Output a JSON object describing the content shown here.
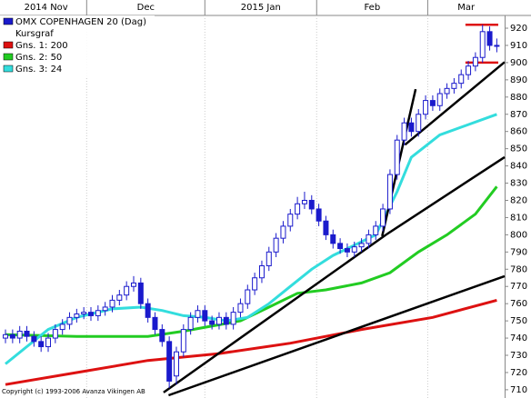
{
  "chart_data": {
    "type": "candlestick",
    "subtitle": "Kursgraf",
    "footer": "Copyright (c) 1993-2006 Avanza Vikingen AB",
    "candles": {
      "name": "OMX COPENHAGEN 20 (Dag)",
      "color": "#1a1acc",
      "x": [
        0,
        1,
        2,
        3,
        4,
        5,
        6,
        7,
        8,
        9,
        10,
        11,
        12,
        13,
        14,
        15,
        16,
        17,
        18,
        19,
        20,
        21,
        22,
        23,
        24,
        25,
        26,
        27,
        28,
        29,
        30,
        31,
        32,
        33,
        34,
        35,
        36,
        37,
        38,
        39,
        40,
        41,
        42,
        43,
        44,
        45,
        46,
        47,
        48,
        49,
        50,
        51,
        52,
        53,
        54,
        55,
        56,
        57,
        58,
        59,
        60,
        61,
        62,
        63,
        64,
        65,
        66,
        67,
        68,
        69
      ],
      "open": [
        740,
        742,
        740,
        744,
        741,
        738,
        735,
        740,
        745,
        748,
        752,
        754,
        755,
        753,
        756,
        758,
        762,
        765,
        770,
        772,
        760,
        752,
        745,
        738,
        718,
        732,
        745,
        752,
        756,
        750,
        748,
        752,
        748,
        755,
        760,
        768,
        775,
        782,
        790,
        798,
        805,
        812,
        818,
        820,
        815,
        808,
        800,
        795,
        792,
        790,
        793,
        795,
        800,
        805,
        815,
        835,
        855,
        865,
        860,
        870,
        878,
        875,
        882,
        885,
        888,
        893,
        898,
        903,
        918,
        910
      ],
      "high": [
        745,
        745,
        747,
        747,
        744,
        741,
        743,
        748,
        751,
        755,
        757,
        758,
        758,
        759,
        761,
        765,
        768,
        773,
        776,
        775,
        763,
        755,
        748,
        741,
        735,
        748,
        755,
        759,
        759,
        753,
        755,
        755,
        758,
        763,
        771,
        778,
        785,
        793,
        801,
        808,
        815,
        822,
        825,
        823,
        818,
        811,
        803,
        798,
        795,
        796,
        798,
        803,
        808,
        818,
        838,
        858,
        868,
        868,
        873,
        881,
        881,
        885,
        888,
        891,
        896,
        901,
        906,
        922,
        921,
        914
      ],
      "low": [
        737,
        737,
        737,
        738,
        735,
        732,
        732,
        737,
        742,
        745,
        749,
        751,
        750,
        750,
        753,
        755,
        759,
        762,
        767,
        757,
        749,
        742,
        735,
        711,
        713,
        729,
        742,
        749,
        747,
        745,
        745,
        745,
        745,
        752,
        757,
        765,
        772,
        779,
        787,
        795,
        802,
        809,
        815,
        812,
        805,
        797,
        792,
        789,
        787,
        787,
        790,
        792,
        797,
        802,
        812,
        832,
        852,
        857,
        857,
        867,
        872,
        872,
        879,
        882,
        885,
        890,
        895,
        900,
        907,
        906
      ],
      "close": [
        742,
        740,
        744,
        741,
        738,
        735,
        740,
        745,
        748,
        752,
        754,
        755,
        753,
        756,
        758,
        762,
        765,
        770,
        772,
        760,
        752,
        745,
        738,
        715,
        732,
        745,
        752,
        756,
        750,
        748,
        752,
        748,
        755,
        760,
        768,
        775,
        782,
        790,
        798,
        805,
        812,
        818,
        820,
        815,
        808,
        800,
        795,
        792,
        790,
        793,
        795,
        800,
        805,
        815,
        835,
        855,
        865,
        860,
        870,
        878,
        875,
        882,
        885,
        888,
        893,
        898,
        903,
        918,
        910,
        910
      ]
    },
    "series": [
      {
        "name": "Gns. 1: 200",
        "color": "#dd1111",
        "x": [
          0,
          10,
          20,
          30,
          40,
          50,
          60,
          69
        ],
        "values": [
          713,
          720,
          727,
          731,
          737,
          745,
          752,
          762
        ]
      },
      {
        "name": "Gns. 2: 50",
        "color": "#22cc22",
        "x": [
          0,
          10,
          20,
          25,
          33,
          37,
          41,
          45,
          50,
          54,
          58,
          62,
          66,
          69
        ],
        "values": [
          742,
          741,
          741,
          744,
          750,
          758,
          766,
          768,
          772,
          778,
          790,
          800,
          812,
          828
        ]
      },
      {
        "name": "Gns. 3: 24",
        "color": "#33dddd",
        "x": [
          0,
          3,
          6,
          10,
          15,
          19,
          22,
          25,
          28,
          31,
          34,
          37,
          40,
          43,
          46,
          49,
          52,
          55,
          57,
          61,
          65,
          69
        ],
        "values": [
          725,
          735,
          745,
          752,
          757,
          758,
          756,
          753,
          752,
          750,
          752,
          760,
          770,
          780,
          788,
          794,
          800,
          825,
          845,
          858,
          864,
          870
        ]
      }
    ],
    "trendlines": [
      {
        "color": "#000000",
        "x": [
          22.2,
          53.5
        ],
        "values": [
          708.4,
          800.2
        ]
      },
      {
        "color": "#000000",
        "x": [
          53.5,
          70.1
        ],
        "values": [
          800.2,
          845.1
        ]
      },
      {
        "color": "#000000",
        "x": [
          52.9,
          57.6
        ],
        "values": [
          799.2,
          884.6
        ]
      },
      {
        "color": "#000000",
        "x": [
          56.1,
          70.1
        ],
        "values": [
          852.3,
          900.3
        ]
      },
      {
        "color": "#000000",
        "x": [
          22.9,
          70.1
        ],
        "values": [
          706.8,
          776
        ]
      },
      {
        "color": "#dd1111",
        "x": [
          64.6,
          69.2
        ],
        "values": [
          922,
          922
        ]
      },
      {
        "color": "#dd1111",
        "x": [
          64.6,
          69.2
        ],
        "values": [
          900,
          900
        ]
      }
    ],
    "xlim": [
      -0.77,
      70.1
    ],
    "xticks": [
      {
        "value": 0,
        "label": "2014 Nov"
      },
      {
        "value": 11.4,
        "label": "Dec"
      },
      {
        "value": 28,
        "label": "2015 Jan"
      },
      {
        "value": 43.7,
        "label": "Feb"
      },
      {
        "value": 59.3,
        "label": "Mar"
      }
    ],
    "ylim": [
      705.2,
      927.4
    ],
    "yticks": [
      710,
      720,
      730,
      740,
      750,
      760,
      770,
      780,
      790,
      800,
      810,
      820,
      830,
      840,
      850,
      860,
      870,
      880,
      890,
      900,
      910,
      920
    ]
  }
}
